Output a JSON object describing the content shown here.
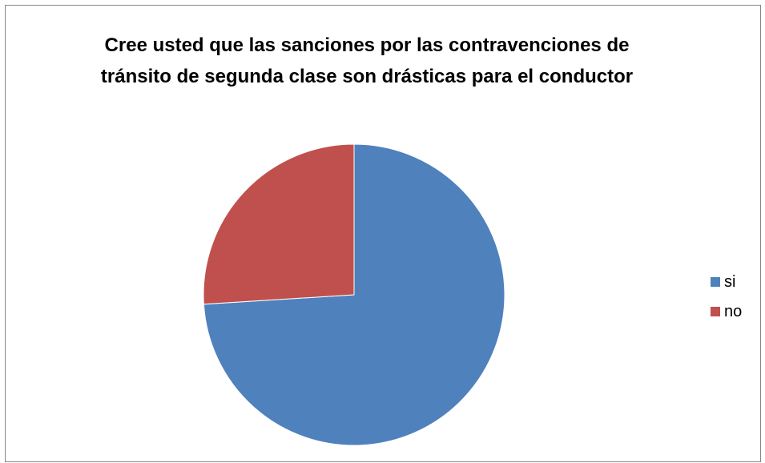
{
  "chart_data": {
    "type": "pie",
    "title": "Cree usted que las sanciones por las contravenciones de tránsito de segunda clase son drásticas para el conductor",
    "categories": [
      "si",
      "no"
    ],
    "values": [
      74,
      26
    ],
    "colors": [
      "#4f81bd",
      "#c0504d"
    ],
    "legend_position": "right",
    "start_angle_deg": 0,
    "direction": "clockwise"
  }
}
